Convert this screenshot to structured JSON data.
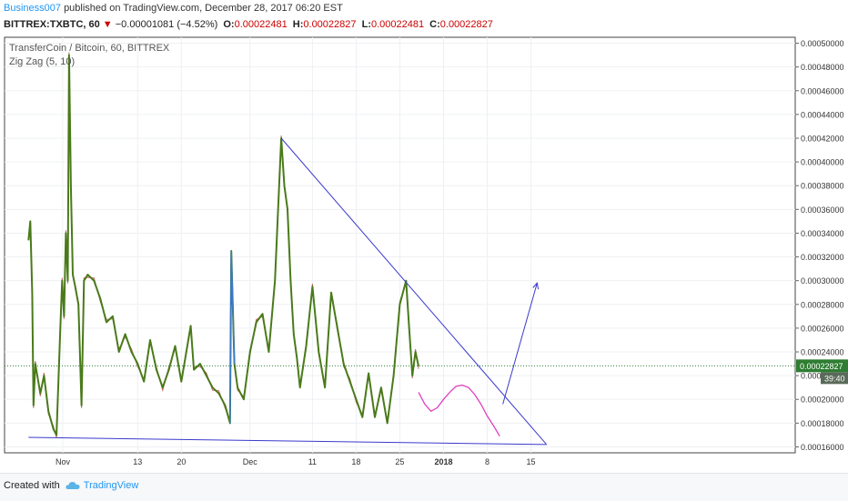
{
  "header": {
    "author": "Business007",
    "published_text": "published on TradingView.com, December 28, 2017 06:20 EST"
  },
  "ticker": {
    "symbol": "BITTREX:TXBTC, 60",
    "change_arrow": "▼",
    "change": "−0.00001081 (−4.52%)",
    "o_label": "O:",
    "o_value": "0.00022481",
    "h_label": "H:",
    "h_value": "0.00022827",
    "l_label": "L:",
    "l_value": "0.00022481",
    "c_label": "C:",
    "c_value": "0.00022827"
  },
  "legend": {
    "pair": "TransferCoin / Bitcoin, 60, BITTREX",
    "indicator": "Zig Zag (5, 10)"
  },
  "footer": {
    "created_with": "Created with",
    "brand": "TradingView"
  },
  "colors": {
    "zigzag": "#4a7a1a",
    "price": "#b03030",
    "trendline": "#3a3acc",
    "projection": "#e040c0",
    "spike": "#3a7acc",
    "last_price_bg": "#2e7d32",
    "timer_bg": "#5a6a5a",
    "grid": "#eef0f3"
  },
  "chart_data": {
    "type": "line",
    "ylim": [
      0.000155,
      0.000505
    ],
    "y_ticks": [
      "0.00016000",
      "0.00018000",
      "0.00020000",
      "0.00022000",
      "0.00024000",
      "0.00026000",
      "0.00028000",
      "0.00030000",
      "0.00032000",
      "0.00034000",
      "0.00036000",
      "0.00038000",
      "0.00040000",
      "0.00042000",
      "0.00044000",
      "0.00046000",
      "0.00048000",
      "0.00050000"
    ],
    "x_tick_labels": [
      "Nov",
      "13",
      "20",
      "Dec",
      "11",
      "18",
      "25",
      "2018",
      "8",
      "15"
    ],
    "x_tick_days": [
      0,
      12,
      19,
      30,
      40,
      47,
      54,
      61,
      68,
      75
    ],
    "last_price": "0.00022827",
    "countdown": "39:40",
    "series": [
      {
        "name": "Zig Zag (5, 10)",
        "points": [
          [
            -5.5,
            0.000334
          ],
          [
            -5.2,
            0.00035
          ],
          [
            -4.9,
            0.00029
          ],
          [
            -4.7,
            0.000195
          ],
          [
            -4.4,
            0.00023
          ],
          [
            -3.6,
            0.000205
          ],
          [
            -3.0,
            0.00022
          ],
          [
            -2.3,
            0.00019
          ],
          [
            -1.5,
            0.000175
          ],
          [
            -1.0,
            0.00017
          ],
          [
            -0.7,
            0.000215
          ],
          [
            -0.4,
            0.00026
          ],
          [
            -0.1,
            0.0003
          ],
          [
            0.2,
            0.00027
          ],
          [
            0.5,
            0.00034
          ],
          [
            0.8,
            0.0003
          ],
          [
            1.0,
            0.00049
          ],
          [
            1.3,
            0.00038
          ],
          [
            1.6,
            0.000305
          ],
          [
            2.0,
            0.000295
          ],
          [
            2.5,
            0.00028
          ],
          [
            3.0,
            0.000195
          ],
          [
            3.4,
            0.0003
          ],
          [
            4.0,
            0.000305
          ],
          [
            5.0,
            0.0003
          ],
          [
            6.0,
            0.000285
          ],
          [
            7.0,
            0.000265
          ],
          [
            8.0,
            0.00027
          ],
          [
            9.0,
            0.00024
          ],
          [
            10.0,
            0.000255
          ],
          [
            11.0,
            0.00024
          ],
          [
            12.0,
            0.00023
          ],
          [
            13.0,
            0.000215
          ],
          [
            14.0,
            0.00025
          ],
          [
            15.0,
            0.000225
          ],
          [
            16.0,
            0.00021
          ],
          [
            17.0,
            0.000225
          ],
          [
            18.0,
            0.000245
          ],
          [
            19.0,
            0.000215
          ],
          [
            20.5,
            0.000262
          ],
          [
            21.0,
            0.000225
          ],
          [
            22.0,
            0.00023
          ],
          [
            23.0,
            0.00022
          ],
          [
            24.0,
            0.00021
          ],
          [
            25.0,
            0.000205
          ],
          [
            26.0,
            0.000195
          ],
          [
            26.8,
            0.00018
          ],
          [
            27.0,
            0.000325
          ],
          [
            27.5,
            0.00023
          ],
          [
            28.0,
            0.00021
          ],
          [
            29.0,
            0.0002
          ],
          [
            30.0,
            0.00024
          ],
          [
            31.0,
            0.000265
          ],
          [
            32.0,
            0.000272
          ],
          [
            33.0,
            0.00024
          ],
          [
            34.0,
            0.0003
          ],
          [
            35.0,
            0.00042
          ],
          [
            35.5,
            0.00038
          ],
          [
            36.0,
            0.00036
          ],
          [
            36.5,
            0.0003
          ],
          [
            37.0,
            0.000255
          ],
          [
            37.5,
            0.000235
          ],
          [
            38.0,
            0.00021
          ],
          [
            39.0,
            0.000245
          ],
          [
            40.0,
            0.000295
          ],
          [
            41.0,
            0.00024
          ],
          [
            42.0,
            0.00021
          ],
          [
            43.0,
            0.00029
          ],
          [
            44.0,
            0.00026
          ],
          [
            45.0,
            0.00023
          ],
          [
            46.0,
            0.000215
          ],
          [
            47.0,
            0.0002
          ],
          [
            48.0,
            0.000185
          ],
          [
            49.0,
            0.000222
          ],
          [
            50.0,
            0.000185
          ],
          [
            51.0,
            0.00021
          ],
          [
            52.0,
            0.00018
          ],
          [
            53.0,
            0.00022
          ],
          [
            54.0,
            0.00028
          ],
          [
            55.0,
            0.0003
          ],
          [
            55.5,
            0.00026
          ],
          [
            56.0,
            0.00022
          ],
          [
            56.5,
            0.00024
          ],
          [
            57.0,
            0.000228
          ]
        ]
      }
    ],
    "annotations": {
      "upper_trendline": [
        [
          35.0,
          0.00042
        ],
        [
          77.5,
          0.000162
        ]
      ],
      "lower_trendline": [
        [
          -5.5,
          0.000168
        ],
        [
          77.5,
          0.000162
        ]
      ],
      "projection_curve": [
        [
          57.0,
          0.000206
        ],
        [
          58.0,
          0.000196
        ],
        [
          59.0,
          0.00019
        ],
        [
          60.0,
          0.000193
        ],
        [
          61.0,
          0.0002
        ],
        [
          62.0,
          0.000206
        ],
        [
          63.0,
          0.000211
        ],
        [
          64.0,
          0.000212
        ],
        [
          65.0,
          0.00021
        ],
        [
          66.0,
          0.000204
        ],
        [
          67.0,
          0.000196
        ],
        [
          68.0,
          0.000186
        ],
        [
          69.0,
          0.000178
        ],
        [
          70.0,
          0.000169
        ]
      ],
      "up_arrow": [
        [
          70.5,
          0.000196
        ],
        [
          76.0,
          0.000298
        ]
      ]
    }
  }
}
